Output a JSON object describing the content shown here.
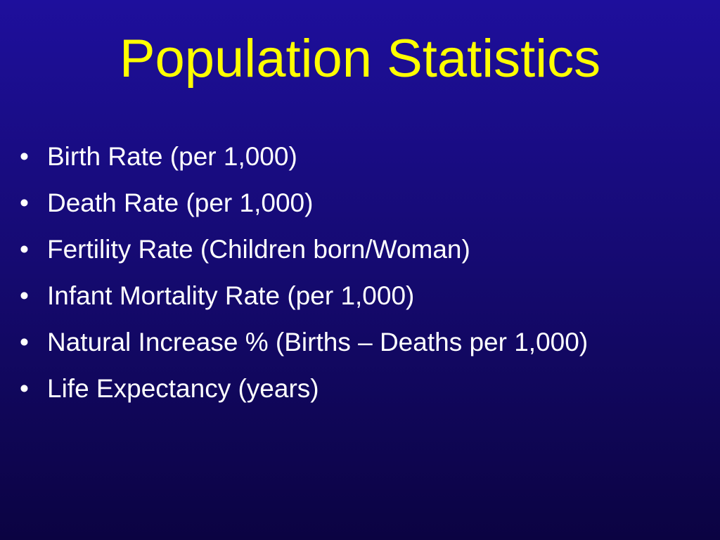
{
  "slide": {
    "title": "Population Statistics",
    "bullet_glyph": "•",
    "bullets": [
      "Birth Rate (per 1,000)",
      "Death Rate (per 1,000)",
      "Fertility Rate (Children born/Woman)",
      "Infant Mortality Rate (per 1,000)",
      "Natural Increase % (Births – Deaths per 1,000)",
      "Life Expectancy (years)"
    ]
  },
  "colors": {
    "background_top": "#1e0f9c",
    "background_bottom": "#0b0342",
    "title": "#ffff00",
    "body_text": "#ffffff"
  }
}
